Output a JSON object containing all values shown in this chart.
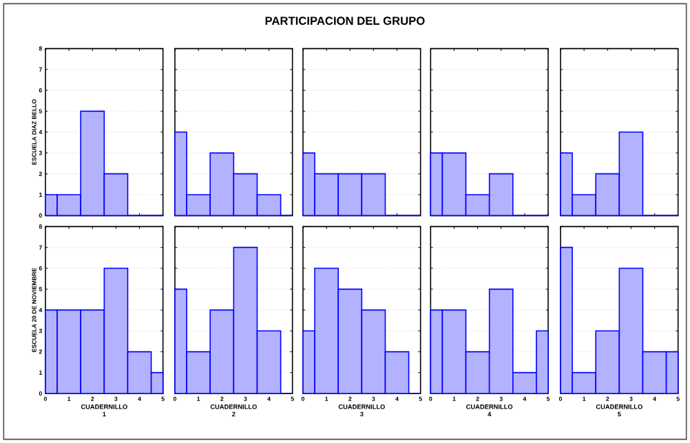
{
  "chart_data": [
    {
      "type": "histogram",
      "ylabel": "ESCUELA DIAZ BELLO",
      "bins": [
        0,
        0.5,
        1.5,
        2.5,
        3.5,
        4.5,
        5
      ],
      "values": [
        1,
        1,
        5,
        2,
        0,
        0
      ],
      "color": "#0000ff",
      "xlim": [
        0,
        5
      ],
      "ylim": [
        0,
        8
      ],
      "xticks": [
        0,
        1,
        2,
        3,
        4,
        5
      ],
      "yticks": [
        0,
        1,
        2,
        3,
        4,
        5,
        6,
        7,
        8
      ],
      "grid": "y",
      "tick_labels": "y"
    },
    {
      "type": "histogram",
      "bins": [
        0,
        0.5,
        1.5,
        2.5,
        3.5,
        4.5,
        5
      ],
      "values": [
        4,
        1,
        3,
        2,
        1,
        0
      ],
      "color": "#0000ff",
      "xlim": [
        0,
        5
      ],
      "ylim": [
        0,
        8
      ],
      "xticks": [
        0,
        1,
        2,
        3,
        4,
        5
      ],
      "yticks": [
        0,
        1,
        2,
        3,
        4,
        5,
        6,
        7,
        8
      ],
      "grid": "y",
      "tick_labels": false
    },
    {
      "type": "histogram",
      "bins": [
        0,
        0.5,
        1.5,
        2.5,
        3.5,
        4.5,
        5
      ],
      "title": "PARTICIPACION DEL GRUPO",
      "values": [
        3,
        2,
        2,
        2,
        0,
        0
      ],
      "color": "#0000ff",
      "xlim": [
        0,
        5
      ],
      "ylim": [
        0,
        8
      ],
      "xticks": [
        0,
        1,
        2,
        3,
        4,
        5
      ],
      "yticks": [
        0,
        1,
        2,
        3,
        4,
        5,
        6,
        7,
        8
      ],
      "grid": "y",
      "tick_labels": false
    },
    {
      "type": "histogram",
      "bins": [
        0,
        0.5,
        1.5,
        2.5,
        3.5,
        4.5,
        5
      ],
      "values": [
        3,
        3,
        1,
        2,
        0,
        0
      ],
      "color": "#0000ff",
      "xlim": [
        0,
        5
      ],
      "ylim": [
        0,
        8
      ],
      "xticks": [
        0,
        1,
        2,
        3,
        4,
        5
      ],
      "yticks": [
        0,
        1,
        2,
        3,
        4,
        5,
        6,
        7,
        8
      ],
      "grid": "y",
      "tick_labels": false
    },
    {
      "type": "histogram",
      "bins": [
        0,
        0.5,
        1.5,
        2.5,
        3.5,
        4.5,
        5
      ],
      "values": [
        3,
        1,
        2,
        4,
        0,
        0
      ],
      "color": "#0000ff",
      "xlim": [
        0,
        5
      ],
      "ylim": [
        0,
        8
      ],
      "xticks": [
        0,
        1,
        2,
        3,
        4,
        5
      ],
      "yticks": [
        0,
        1,
        2,
        3,
        4,
        5,
        6,
        7,
        8
      ],
      "grid": "y",
      "tick_labels": false
    },
    {
      "type": "histogram",
      "xlabel": "CUADERNILLO 1",
      "ylabel": "ESCUELA 20 DE NOVIEMBRE",
      "bins": [
        0,
        0.5,
        1.5,
        2.5,
        3.5,
        4.5,
        5
      ],
      "values": [
        4,
        4,
        4,
        6,
        2,
        1
      ],
      "color": "#0000ff",
      "xlim": [
        0,
        5
      ],
      "ylim": [
        0,
        8
      ],
      "xticks": [
        0,
        1,
        2,
        3,
        4,
        5
      ],
      "yticks": [
        0,
        1,
        2,
        3,
        4,
        5,
        6,
        7,
        8
      ],
      "grid": "y"
    },
    {
      "type": "histogram",
      "xlabel": "CUADERNILLO 2",
      "bins": [
        0,
        0.5,
        1.5,
        2.5,
        3.5,
        4.5,
        5
      ],
      "values": [
        5,
        2,
        4,
        7,
        3,
        0
      ],
      "color": "#0000ff",
      "xlim": [
        0,
        5
      ],
      "ylim": [
        0,
        8
      ],
      "xticks": [
        0,
        1,
        2,
        3,
        4,
        5
      ],
      "yticks": [
        0,
        1,
        2,
        3,
        4,
        5,
        6,
        7,
        8
      ],
      "grid": "y",
      "tick_labels": "x"
    },
    {
      "type": "histogram",
      "xlabel": "CUADERNILLO 3",
      "bins": [
        0,
        0.5,
        1.5,
        2.5,
        3.5,
        4.5,
        5
      ],
      "values": [
        3,
        6,
        5,
        4,
        2,
        0
      ],
      "color": "#0000ff",
      "xlim": [
        0,
        5
      ],
      "ylim": [
        0,
        8
      ],
      "xticks": [
        0,
        1,
        2,
        3,
        4,
        5
      ],
      "yticks": [
        0,
        1,
        2,
        3,
        4,
        5,
        6,
        7,
        8
      ],
      "grid": "y",
      "tick_labels": "x"
    },
    {
      "type": "histogram",
      "xlabel": "CUADERNILLO 4",
      "bins": [
        0,
        0.5,
        1.5,
        2.5,
        3.5,
        4.5,
        5
      ],
      "values": [
        4,
        4,
        2,
        5,
        1,
        3
      ],
      "color": "#0000ff",
      "xlim": [
        0,
        5
      ],
      "ylim": [
        0,
        8
      ],
      "xticks": [
        0,
        1,
        2,
        3,
        4,
        5
      ],
      "yticks": [
        0,
        1,
        2,
        3,
        4,
        5,
        6,
        7,
        8
      ],
      "grid": "y",
      "tick_labels": "x"
    },
    {
      "type": "histogram",
      "xlabel": "CUADERNILLO 5",
      "bins": [
        0,
        0.5,
        1.5,
        2.5,
        3.5,
        4.5,
        5
      ],
      "values": [
        7,
        1,
        3,
        6,
        2,
        2
      ],
      "color": "#0000ff",
      "xlim": [
        0,
        5
      ],
      "ylim": [
        0,
        8
      ],
      "xticks": [
        0,
        1,
        2,
        3,
        4,
        5
      ],
      "yticks": [
        0,
        1,
        2,
        3,
        4,
        5,
        6,
        7,
        8
      ],
      "grid": "y",
      "tick_labels": "x"
    }
  ]
}
